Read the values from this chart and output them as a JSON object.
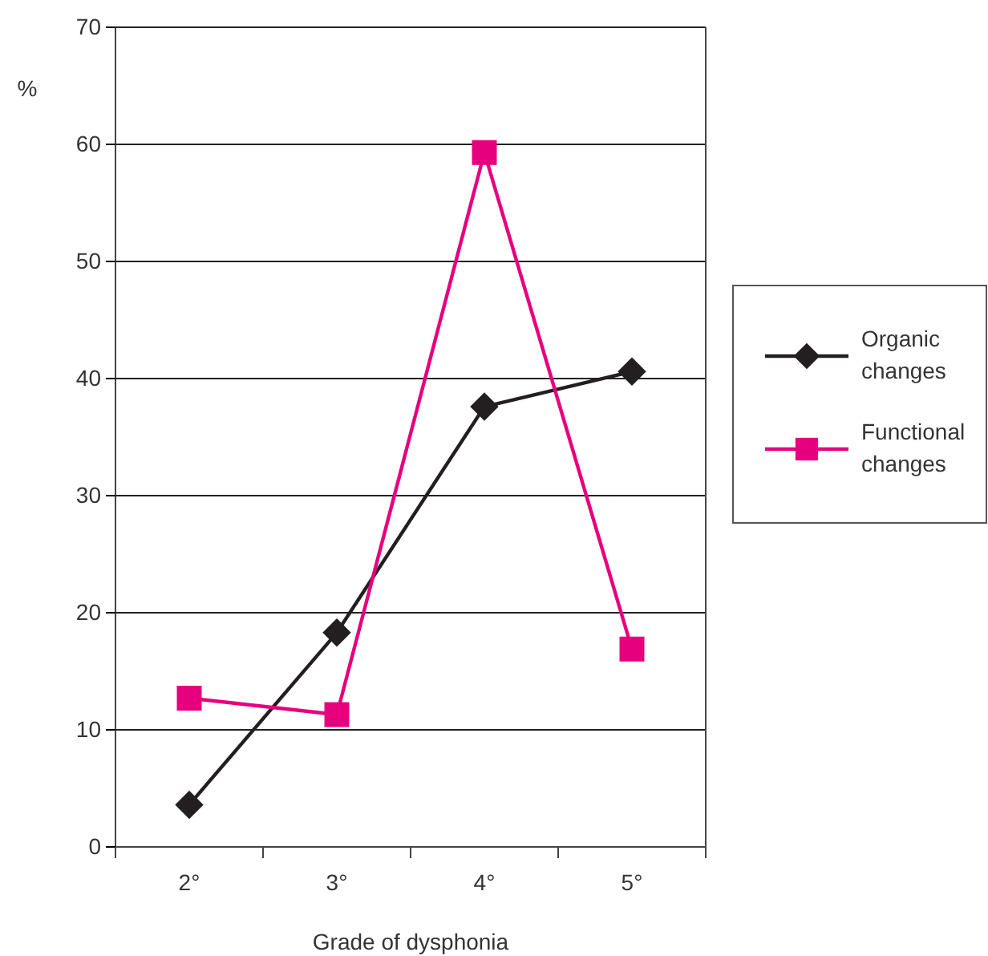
{
  "chart_data": {
    "type": "line",
    "ylabel": "%",
    "xlabel": "Grade of dysphonia",
    "categories": [
      "2°",
      "3°",
      "4°",
      "5°"
    ],
    "series": [
      {
        "name": "Organic changes",
        "color": "#231f20",
        "marker": "diamond",
        "values": [
          3.6,
          18.3,
          37.6,
          40.6
        ]
      },
      {
        "name": "Functional changes",
        "color": "#e6007e",
        "marker": "square",
        "values": [
          12.7,
          11.3,
          59.3,
          16.9
        ]
      }
    ],
    "ylim": [
      0,
      70
    ],
    "yticks": [
      0,
      10,
      20,
      30,
      40,
      50,
      60,
      70
    ],
    "grid": "y",
    "legend": "right",
    "line_style": "solid"
  }
}
